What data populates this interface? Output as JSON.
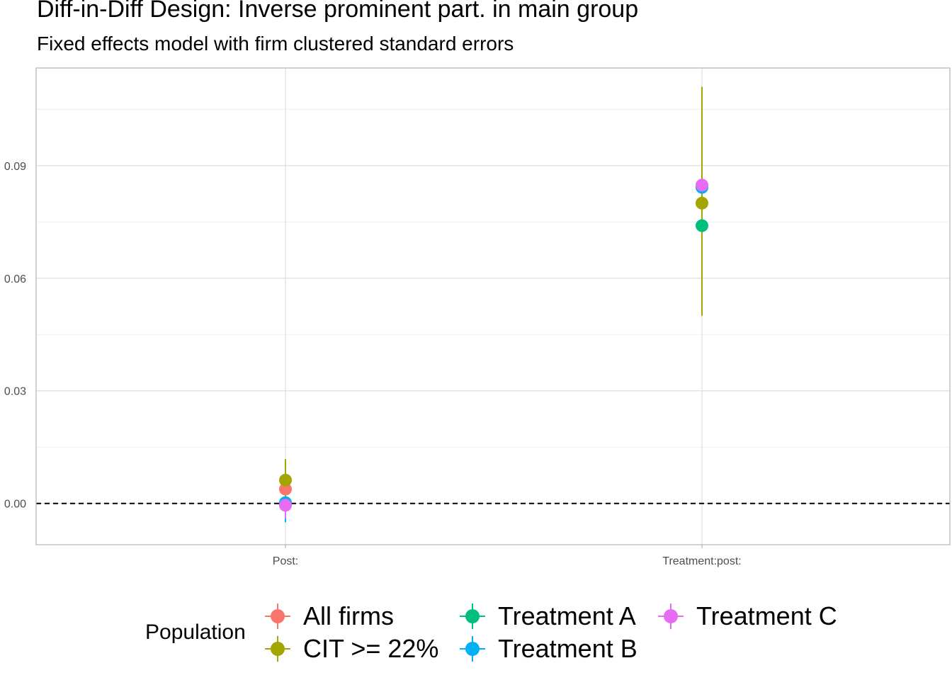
{
  "chart_data": {
    "type": "scatter",
    "title": "Diff-in-Diff Design: Inverse prominent part. in main group",
    "subtitle": "Fixed effects model with firm clustered standard errors",
    "xlabel": "",
    "ylabel": "",
    "categories": [
      "Post:",
      "Treatment:post:"
    ],
    "ylim": [
      -0.011,
      0.116
    ],
    "yticks": [
      0.0,
      0.03,
      0.06,
      0.09
    ],
    "ytick_labels": [
      "0.00",
      "0.03",
      "0.06",
      "0.09"
    ],
    "reference_line": {
      "y": 0,
      "style": "dashed"
    },
    "grid": true,
    "legend": {
      "title": "Population",
      "position": "bottom"
    },
    "series": [
      {
        "name": "All firms",
        "color": "#F8766D",
        "points": [
          {
            "x": "Post:",
            "y": 0.0038,
            "lo": 0.0015,
            "hi": 0.0062
          }
        ]
      },
      {
        "name": "CIT >= 22%",
        "color": "#A3A500",
        "points": [
          {
            "x": "Post:",
            "y": 0.0062,
            "lo": 0.0,
            "hi": 0.0118
          },
          {
            "x": "Treatment:post:",
            "y": 0.08,
            "lo": 0.05,
            "hi": 0.111
          }
        ]
      },
      {
        "name": "Treatment A",
        "color": "#00BF7D",
        "points": [
          {
            "x": "Post:",
            "y": 0.0002,
            "lo": -0.002,
            "hi": 0.0025
          },
          {
            "x": "Treatment:post:",
            "y": 0.074,
            "lo": 0.074,
            "hi": 0.074
          }
        ]
      },
      {
        "name": "Treatment B",
        "color": "#00B0F6",
        "points": [
          {
            "x": "Post:",
            "y": 0.0001,
            "lo": -0.005,
            "hi": 0.005
          },
          {
            "x": "Treatment:post:",
            "y": 0.0842,
            "lo": 0.0842,
            "hi": 0.0842
          }
        ]
      },
      {
        "name": "Treatment C",
        "color": "#E76BF3",
        "points": [
          {
            "x": "Post:",
            "y": -0.0005,
            "lo": -0.004,
            "hi": 0.002
          },
          {
            "x": "Treatment:post:",
            "y": 0.0848,
            "lo": 0.0848,
            "hi": 0.0848
          }
        ]
      }
    ]
  }
}
